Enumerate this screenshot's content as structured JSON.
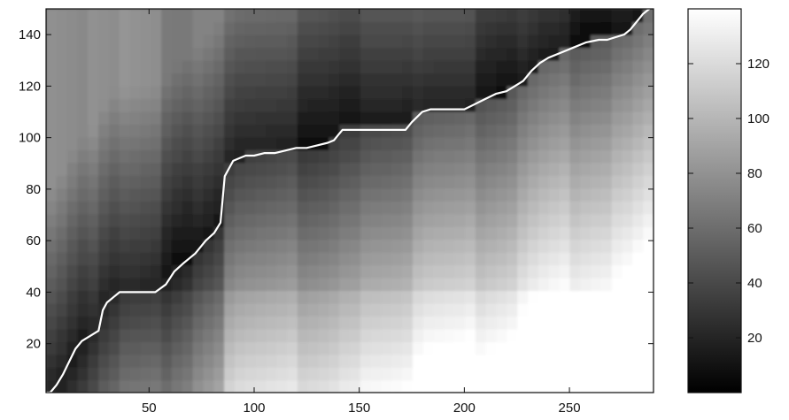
{
  "chart_data": {
    "type": "heatmap",
    "title": "",
    "xlabel": "",
    "ylabel": "",
    "xlim": [
      1,
      290
    ],
    "ylim": [
      1,
      150
    ],
    "x_ticks": [
      50,
      100,
      150,
      200,
      250
    ],
    "y_ticks": [
      20,
      40,
      60,
      80,
      100,
      120,
      140
    ],
    "colorbar": {
      "ticks": [
        20,
        40,
        60,
        80,
        100,
        120
      ],
      "range": [
        0,
        140
      ],
      "colormap": "gray",
      "low_color": "#000000",
      "high_color": "#ffffff"
    },
    "grid": false,
    "path": {
      "color": "#ffffff",
      "x": [
        1,
        3,
        6,
        9,
        12,
        15,
        18,
        22,
        26,
        28,
        30,
        33,
        36,
        40,
        46,
        53,
        58,
        62,
        66,
        72,
        77,
        81,
        84,
        85,
        86,
        88,
        90,
        93,
        96,
        100,
        105,
        110,
        115,
        120,
        125,
        130,
        135,
        138,
        140,
        142,
        150,
        160,
        172,
        175,
        180,
        184,
        190,
        200,
        205,
        210,
        215,
        220,
        224,
        228,
        232,
        236,
        240,
        246,
        252,
        258,
        264,
        268,
        272,
        276,
        279,
        282,
        285,
        288
      ],
      "y": [
        1,
        1,
        4,
        8,
        13,
        18,
        21,
        23,
        25,
        33,
        36,
        38,
        40,
        40,
        40,
        40,
        43,
        48,
        51,
        55,
        60,
        63,
        67,
        76,
        85,
        88,
        91,
        92,
        93,
        93,
        94,
        94,
        95,
        96,
        96,
        97,
        98,
        99,
        101,
        103,
        103,
        103,
        103,
        106,
        110,
        111,
        111,
        111,
        113,
        115,
        117,
        118,
        120,
        122,
        126,
        129,
        131,
        133,
        135,
        137,
        138,
        138,
        139,
        140,
        142,
        145,
        148,
        150
      ]
    }
  }
}
